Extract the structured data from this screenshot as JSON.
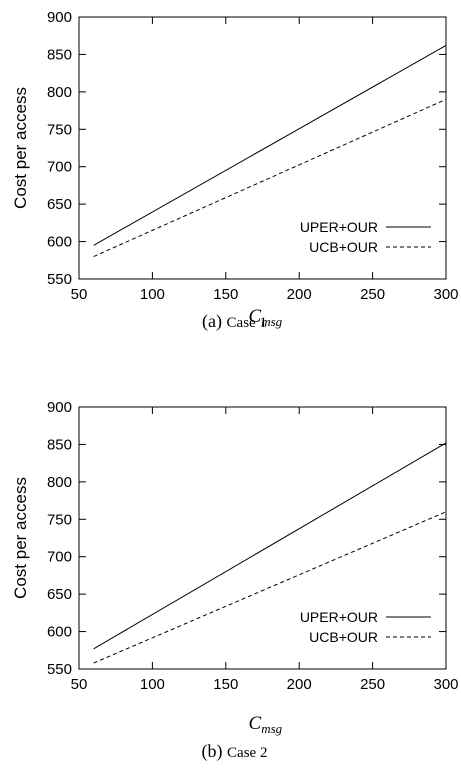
{
  "chart_data": [
    {
      "type": "line",
      "ylabel": "Cost per access",
      "xlabel_main": "C",
      "xlabel_sub": "msg",
      "caption_label": "(a)",
      "caption_text": "Case 1",
      "xlim": [
        50,
        300
      ],
      "ylim": [
        550,
        900
      ],
      "xticks": [
        50,
        100,
        150,
        200,
        250,
        300
      ],
      "yticks": [
        550,
        600,
        650,
        700,
        750,
        800,
        850,
        900
      ],
      "grid": false,
      "legend_position": "bottom-right",
      "series": [
        {
          "name": "UPER+OUR",
          "style": "solid",
          "x": [
            60,
            300
          ],
          "y": [
            595,
            862
          ]
        },
        {
          "name": "UCB+OUR",
          "style": "dashed",
          "x": [
            60,
            300
          ],
          "y": [
            580,
            790
          ]
        }
      ]
    },
    {
      "type": "line",
      "ylabel": "Cost per access",
      "xlabel_main": "C",
      "xlabel_sub": "msg",
      "caption_label": "(b)",
      "caption_text": "Case 2",
      "xlim": [
        50,
        300
      ],
      "ylim": [
        550,
        900
      ],
      "xticks": [
        50,
        100,
        150,
        200,
        250,
        300
      ],
      "yticks": [
        550,
        600,
        650,
        700,
        750,
        800,
        850,
        900
      ],
      "grid": false,
      "legend_position": "bottom-right",
      "series": [
        {
          "name": "UPER+OUR",
          "style": "solid",
          "x": [
            60,
            300
          ],
          "y": [
            577,
            852
          ]
        },
        {
          "name": "UCB+OUR",
          "style": "dashed",
          "x": [
            60,
            300
          ],
          "y": [
            558,
            760
          ]
        }
      ]
    }
  ]
}
